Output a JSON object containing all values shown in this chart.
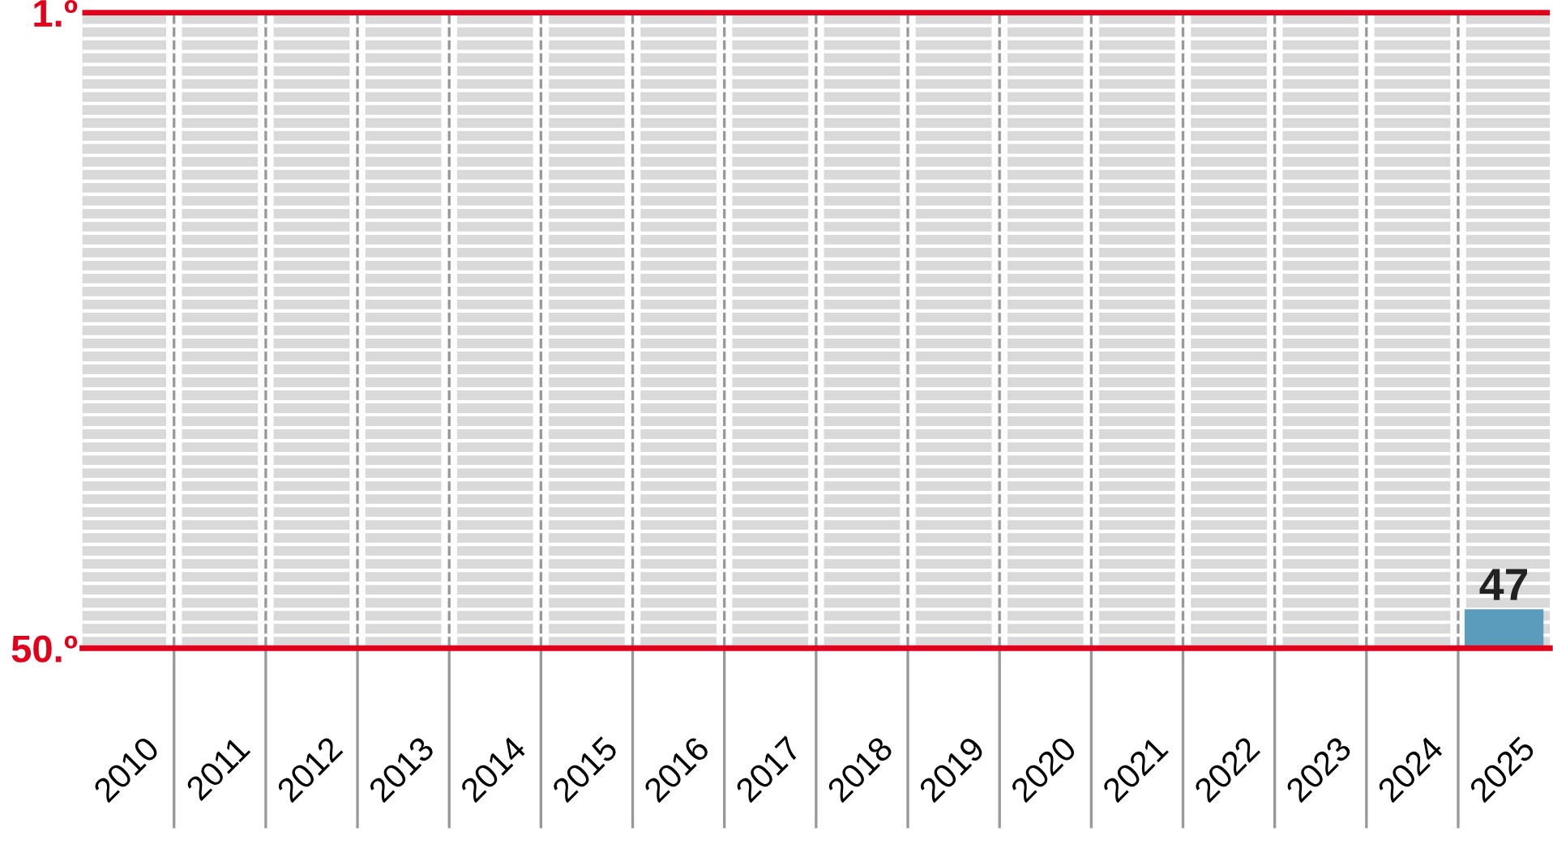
{
  "chart_data": {
    "type": "bar",
    "categories": [
      "2010",
      "2011",
      "2012",
      "2013",
      "2014",
      "2015",
      "2016",
      "2017",
      "2018",
      "2019",
      "2020",
      "2021",
      "2022",
      "2023",
      "2024",
      "2025"
    ],
    "values": [
      null,
      null,
      null,
      null,
      null,
      null,
      null,
      null,
      null,
      null,
      null,
      null,
      null,
      null,
      null,
      -3
    ],
    "base": [
      null,
      null,
      null,
      null,
      null,
      null,
      null,
      null,
      null,
      null,
      null,
      null,
      null,
      null,
      null,
      50
    ],
    "annotations": [
      {
        "text": "47",
        "x": "2025",
        "y": 47
      }
    ],
    "color": "#5b9bbb",
    "ylim": [
      50,
      1
    ],
    "yticks": [
      {
        "value": 1,
        "label": "1.º"
      },
      {
        "value": 2,
        "label": null
      },
      {
        "value": 3,
        "label": null
      },
      {
        "value": 4,
        "label": null
      },
      {
        "value": 5,
        "label": null
      },
      {
        "value": 6,
        "label": null
      },
      {
        "value": 7,
        "label": null
      },
      {
        "value": 8,
        "label": null
      },
      {
        "value": 9,
        "label": null
      },
      {
        "value": 10,
        "label": null
      },
      {
        "value": 11,
        "label": null
      },
      {
        "value": 12,
        "label": null
      },
      {
        "value": 13,
        "label": null
      },
      {
        "value": 14,
        "label": null
      },
      {
        "value": 15,
        "label": null
      },
      {
        "value": 16,
        "label": null
      },
      {
        "value": 17,
        "label": null
      },
      {
        "value": 18,
        "label": null
      },
      {
        "value": 19,
        "label": null
      },
      {
        "value": 20,
        "label": null
      },
      {
        "value": 21,
        "label": null
      },
      {
        "value": 22,
        "label": null
      },
      {
        "value": 23,
        "label": null
      },
      {
        "value": 24,
        "label": null
      },
      {
        "value": 25,
        "label": null
      },
      {
        "value": 26,
        "label": null
      },
      {
        "value": 27,
        "label": null
      },
      {
        "value": 28,
        "label": null
      },
      {
        "value": 29,
        "label": null
      },
      {
        "value": 30,
        "label": null
      },
      {
        "value": 31,
        "label": null
      },
      {
        "value": 32,
        "label": null
      },
      {
        "value": 33,
        "label": null
      },
      {
        "value": 34,
        "label": null
      },
      {
        "value": 35,
        "label": null
      },
      {
        "value": 36,
        "label": null
      },
      {
        "value": 37,
        "label": null
      },
      {
        "value": 38,
        "label": null
      },
      {
        "value": 39,
        "label": null
      },
      {
        "value": 40,
        "label": null
      },
      {
        "value": 41,
        "label": null
      },
      {
        "value": 42,
        "label": null
      },
      {
        "value": 43,
        "label": null
      },
      {
        "value": 44,
        "label": null
      },
      {
        "value": 45,
        "label": null
      },
      {
        "value": 46,
        "label": null
      },
      {
        "value": 47,
        "label": null
      },
      {
        "value": 48,
        "label": null
      },
      {
        "value": 49,
        "label": null
      },
      {
        "value": 50,
        "label": "50.º"
      }
    ],
    "ref_lines": [
      {
        "axis": "y",
        "value": 1,
        "color": "#e3001b"
      }
    ],
    "grid": true
  }
}
